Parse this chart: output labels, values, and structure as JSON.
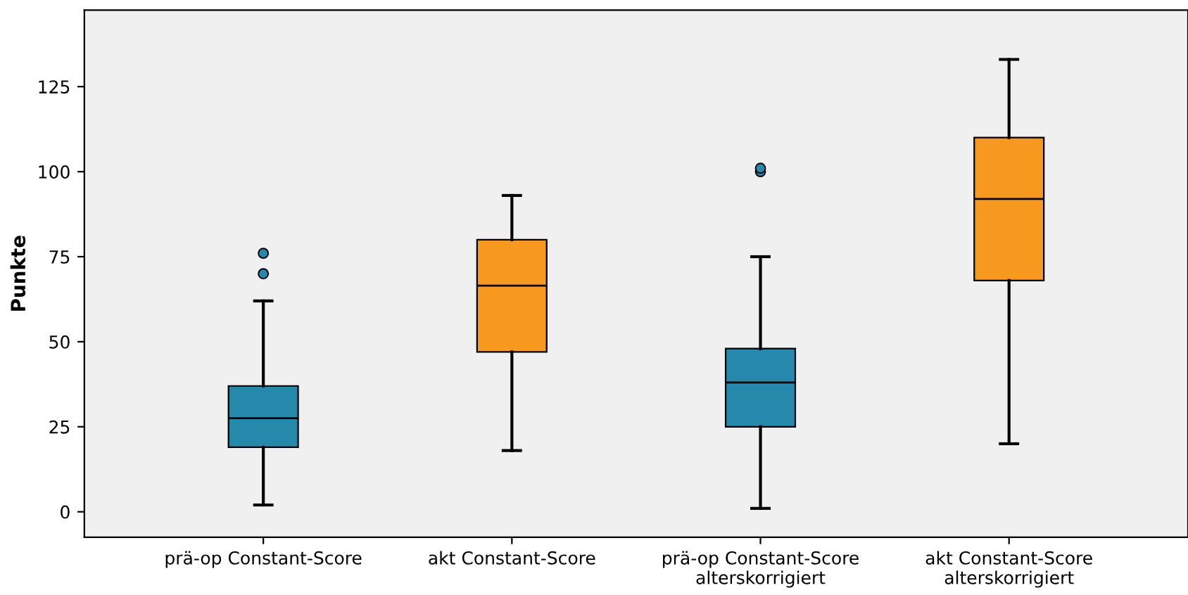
{
  "chart_data": {
    "type": "box",
    "ylabel": "Punkte",
    "categories": [
      "prä-op Constant-Score",
      "akt Constant-Score",
      "prä-op Constant-Score\nalterskorrigiert",
      "akt Constant-Score\nalterskorrigiert"
    ],
    "colors": [
      "#2589ab",
      "#f7981f",
      "#2589ab",
      "#f7981f"
    ],
    "boxes": [
      {
        "low": 2,
        "q1": 19,
        "median": 27.5,
        "q3": 37,
        "high": 62,
        "outliers": [
          70,
          76
        ]
      },
      {
        "low": 18,
        "q1": 47,
        "median": 66.5,
        "q3": 80,
        "high": 93
      },
      {
        "low": 1,
        "q1": 25,
        "median": 38,
        "q3": 48,
        "high": 75,
        "outliers": [
          100,
          101
        ]
      },
      {
        "low": 20,
        "q1": 68,
        "median": 92,
        "q3": 110,
        "high": 133
      }
    ],
    "ylim": [
      -7.5,
      147.5
    ],
    "yticks": [
      0,
      25,
      50,
      75,
      100,
      125
    ],
    "grid": false
  }
}
